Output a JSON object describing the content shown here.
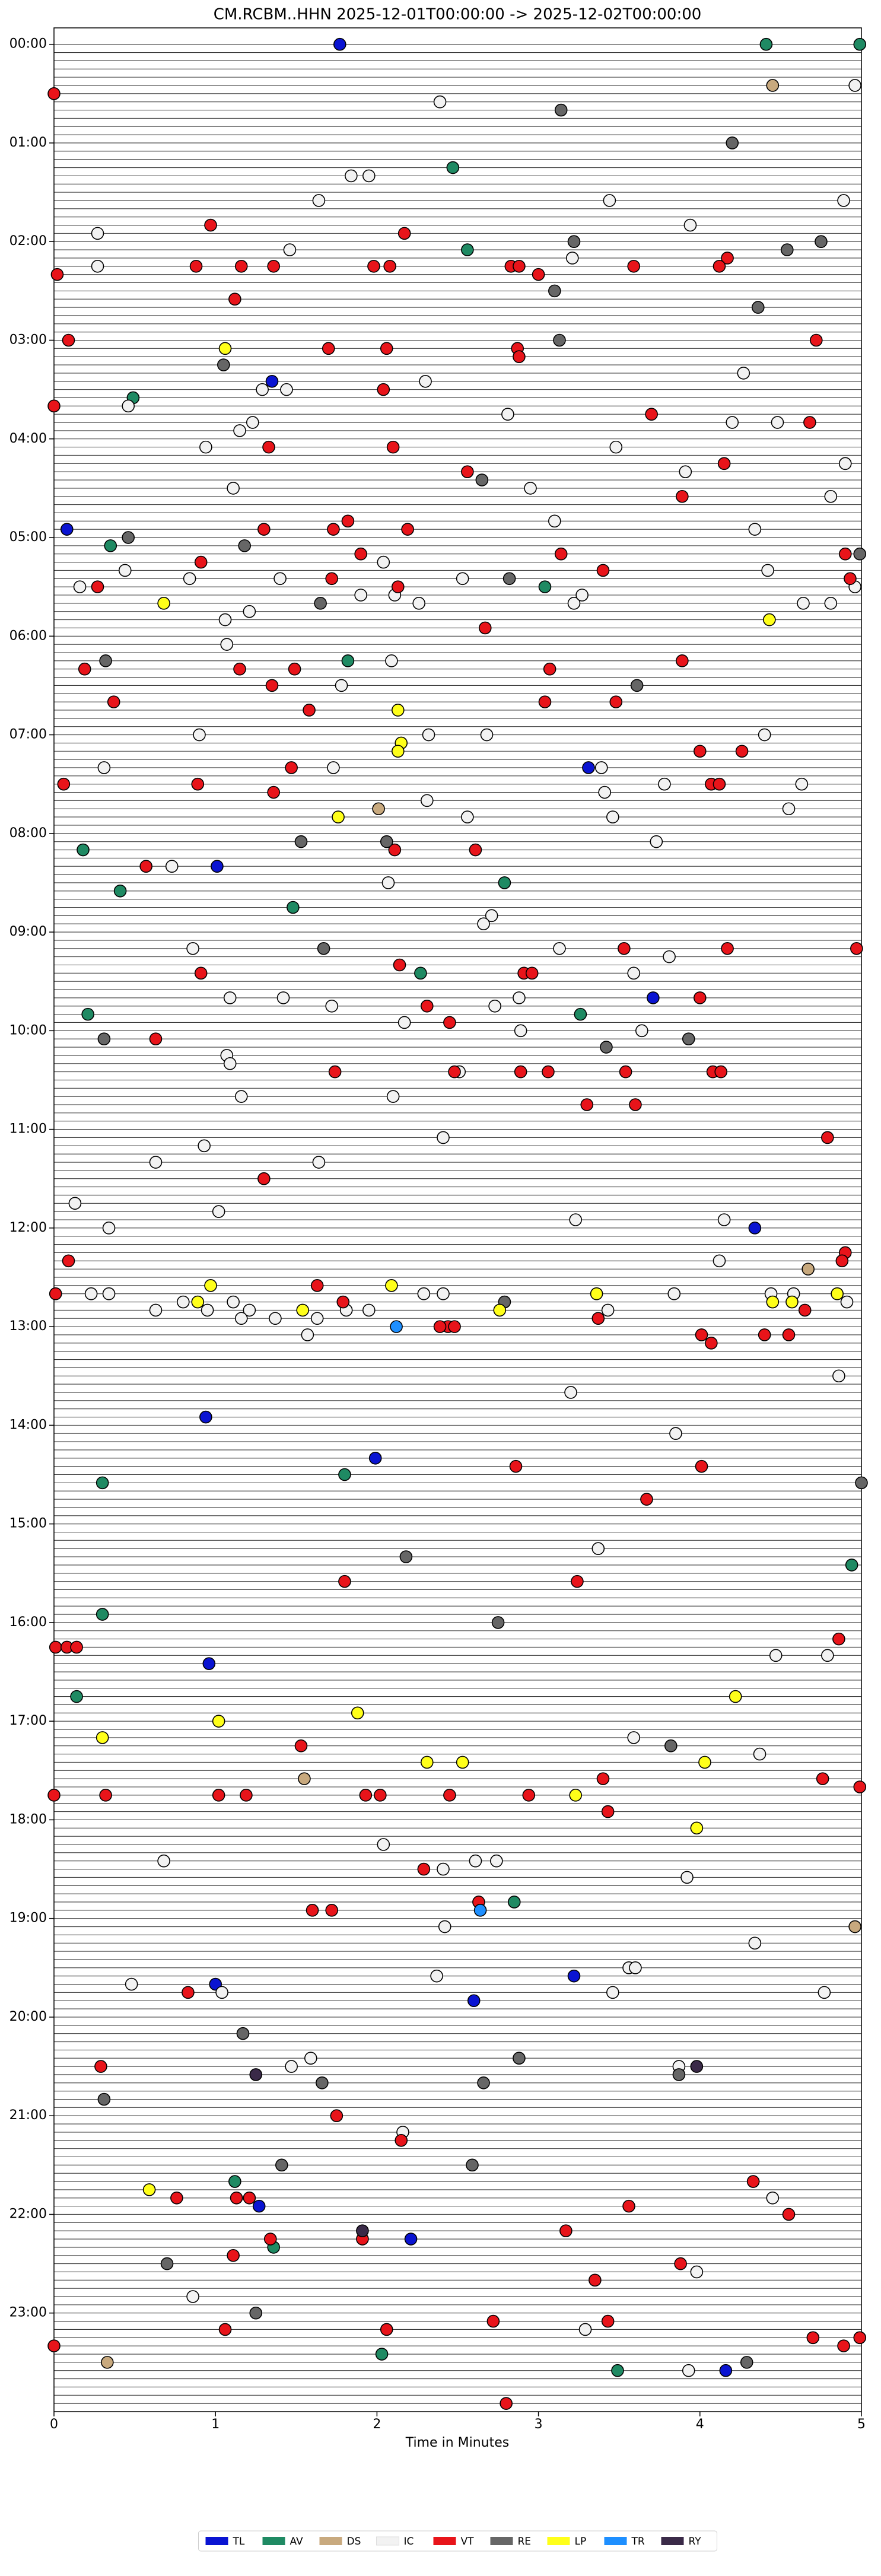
{
  "chart_data": {
    "type": "scatter",
    "title": "CM.RCBM..HHN  2025-12-01T00:00:00 -> 2025-12-02T00:00:00",
    "x_label": "Time in Minutes",
    "xlim": [
      0,
      5
    ],
    "xticks": [
      0,
      1,
      2,
      3,
      4,
      5
    ],
    "ylim": [
      1440,
      -10
    ],
    "yticks": [
      {
        "value": 0,
        "label": "00:00"
      },
      {
        "value": 60,
        "label": "01:00"
      },
      {
        "value": 120,
        "label": "02:00"
      },
      {
        "value": 180,
        "label": "03:00"
      },
      {
        "value": 240,
        "label": "04:00"
      },
      {
        "value": 300,
        "label": "05:00"
      },
      {
        "value": 360,
        "label": "06:00"
      },
      {
        "value": 420,
        "label": "07:00"
      },
      {
        "value": 480,
        "label": "08:00"
      },
      {
        "value": 540,
        "label": "09:00"
      },
      {
        "value": 600,
        "label": "10:00"
      },
      {
        "value": 660,
        "label": "11:00"
      },
      {
        "value": 720,
        "label": "12:00"
      },
      {
        "value": 780,
        "label": "13:00"
      },
      {
        "value": 840,
        "label": "14:00"
      },
      {
        "value": 900,
        "label": "15:00"
      },
      {
        "value": 960,
        "label": "16:00"
      },
      {
        "value": 1020,
        "label": "17:00"
      },
      {
        "value": 1080,
        "label": "18:00"
      },
      {
        "value": 1140,
        "label": "19:00"
      },
      {
        "value": 1200,
        "label": "20:00"
      },
      {
        "value": 1260,
        "label": "21:00"
      },
      {
        "value": 1320,
        "label": "22:00"
      },
      {
        "value": 1380,
        "label": "23:00"
      }
    ],
    "legend": "bottom",
    "series": [
      {
        "name": "TL",
        "color": "#0a14d2",
        "x": [
          1.77,
          0.08,
          1.35,
          1.01,
          3.71,
          3.31,
          4.34,
          0.94,
          1.99,
          0.96,
          3.22,
          1.0,
          2.6,
          1.27,
          2.21,
          4.16
        ],
        "y": [
          0,
          295,
          205,
          500,
          580,
          440,
          720,
          835,
          860,
          985,
          1175,
          1180,
          1190,
          1315,
          1335,
          1415
        ]
      },
      {
        "name": "AV",
        "color": "#1f8a63",
        "x": [
          4.41,
          4.99,
          2.47,
          2.56,
          0.49,
          0.35,
          3.04,
          1.82,
          0.18,
          2.79,
          0.41,
          1.48,
          2.27,
          0.21,
          3.26,
          1.8,
          0.3,
          4.94,
          0.3,
          0.14,
          2.85,
          1.12,
          1.36,
          2.03,
          3.49
        ],
        "y": [
          0,
          0,
          75,
          125,
          215,
          305,
          330,
          375,
          490,
          510,
          515,
          525,
          565,
          590,
          590,
          870,
          875,
          925,
          955,
          1005,
          1130,
          1300,
          1340,
          1405,
          1415
        ]
      },
      {
        "name": "DS",
        "color": "#c8a97e",
        "x": [
          4.45,
          2.01,
          4.67,
          1.55,
          4.96,
          0.33
        ],
        "y": [
          25,
          465,
          745,
          1055,
          1145,
          1410
        ]
      },
      {
        "name": "IC",
        "color": "#f2f2f2",
        "x": [
          2.39,
          4.96,
          1.84,
          1.95,
          1.64,
          3.44,
          4.89,
          0.27,
          3.94,
          1.46,
          3.21,
          0.27,
          4.27,
          1.44,
          1.29,
          2.3,
          0.46,
          2.81,
          1.23,
          1.15,
          4.2,
          4.48,
          0.94,
          3.48,
          3.91,
          4.9,
          1.11,
          2.95,
          4.81,
          3.1,
          4.34,
          2.04,
          0.44,
          4.42,
          4.96,
          0.84,
          1.4,
          2.53,
          0.16,
          1.06,
          1.21,
          2.26,
          3.22,
          3.27,
          4.64,
          4.81,
          1.9,
          2.11,
          1.07,
          2.09,
          1.78,
          0.9,
          2.32,
          2.68,
          4.4,
          0.31,
          1.73,
          3.39,
          3.78,
          4.63,
          3.41,
          2.31,
          2.56,
          3.46,
          4.55,
          3.73,
          0.73,
          2.07,
          2.71,
          2.66,
          0.86,
          3.13,
          3.81,
          3.59,
          1.09,
          1.42,
          2.88,
          1.72,
          2.73,
          2.17,
          2.89,
          3.64,
          1.07,
          1.09,
          2.51,
          1.16,
          2.1,
          2.41,
          0.93,
          0.63,
          1.64,
          0.13,
          1.02,
          0.34,
          3.23,
          4.15,
          4.12,
          0.23,
          0.34,
          2.41,
          2.29,
          4.44,
          4.58,
          3.84,
          4.91,
          0.63,
          1.11,
          0.8,
          0.95,
          1.21,
          1.37,
          1.63,
          1.81,
          1.95,
          3.43,
          1.16,
          1.57,
          4.86,
          3.2,
          3.85,
          3.37,
          4.47,
          4.79,
          3.59,
          4.37,
          2.04,
          0.68,
          2.61,
          2.74,
          2.41,
          3.92,
          2.42,
          4.34,
          2.37,
          0.48,
          1.04,
          3.56,
          3.6,
          3.46,
          4.77,
          1.59,
          1.47,
          3.87,
          2.16,
          4.45,
          3.98,
          0.86,
          3.29,
          3.93
        ],
        "y": [
          35,
          25,
          80,
          80,
          95,
          95,
          95,
          115,
          110,
          125,
          130,
          135,
          200,
          210,
          210,
          205,
          220,
          225,
          230,
          235,
          230,
          230,
          245,
          245,
          260,
          255,
          270,
          270,
          275,
          290,
          295,
          315,
          320,
          320,
          330,
          325,
          325,
          325,
          330,
          350,
          345,
          340,
          340,
          335,
          340,
          340,
          335,
          335,
          365,
          375,
          390,
          420,
          420,
          420,
          420,
          440,
          440,
          440,
          450,
          450,
          455,
          460,
          470,
          470,
          465,
          485,
          500,
          510,
          530,
          535,
          550,
          550,
          555,
          565,
          580,
          580,
          580,
          585,
          585,
          595,
          600,
          600,
          615,
          620,
          625,
          640,
          640,
          665,
          670,
          680,
          680,
          705,
          710,
          720,
          715,
          715,
          740,
          760,
          760,
          760,
          760,
          760,
          760,
          760,
          765,
          770,
          765,
          765,
          770,
          770,
          775,
          775,
          770,
          770,
          770,
          775,
          785,
          810,
          820,
          845,
          915,
          980,
          980,
          1030,
          1040,
          1095,
          1105,
          1105,
          1105,
          1110,
          1115,
          1145,
          1155,
          1175,
          1180,
          1185,
          1170,
          1170,
          1185,
          1185,
          1225,
          1230,
          1230,
          1270,
          1310,
          1355,
          1370,
          1390,
          1415
        ]
      },
      {
        "name": "VT",
        "color": "#e8141a",
        "x": [
          0.0,
          0.97,
          2.17,
          4.17,
          0.02,
          0.88,
          1.16,
          1.36,
          1.98,
          2.08,
          2.83,
          2.88,
          3.0,
          3.59,
          4.12,
          1.12,
          0.09,
          1.7,
          2.06,
          2.87,
          2.88,
          4.72,
          2.04,
          0.0,
          1.33,
          3.7,
          2.1,
          4.68,
          4.15,
          2.56,
          3.89,
          1.82,
          1.3,
          1.73,
          2.19,
          0.91,
          1.9,
          3.14,
          4.9,
          4.93,
          1.72,
          3.4,
          0.27,
          2.13,
          2.67,
          0.19,
          1.15,
          1.49,
          1.35,
          3.07,
          3.89,
          0.37,
          1.58,
          3.04,
          3.48,
          4.0,
          4.26,
          1.47,
          4.07,
          4.12,
          0.06,
          0.89,
          1.36,
          2.11,
          2.61,
          0.57,
          3.53,
          4.17,
          4.97,
          0.91,
          2.14,
          2.91,
          2.96,
          4.0,
          2.31,
          2.45,
          0.63,
          1.74,
          2.48,
          2.89,
          3.06,
          3.54,
          4.08,
          4.13,
          3.3,
          3.6,
          4.79,
          1.3,
          4.9,
          4.88,
          0.09,
          0.01,
          1.63,
          1.79,
          4.65,
          3.37,
          2.44,
          2.39,
          2.48,
          4.01,
          4.07,
          4.4,
          4.55,
          2.86,
          4.01,
          3.67,
          1.8,
          3.24,
          0.01,
          0.08,
          0.14,
          4.86,
          1.53,
          3.4,
          4.76,
          0.0,
          0.32,
          1.02,
          1.19,
          1.93,
          2.02,
          2.45,
          2.94,
          4.99,
          3.43,
          2.29,
          2.63,
          1.6,
          1.72,
          0.83,
          0.29,
          1.75,
          2.15,
          4.33,
          0.76,
          1.13,
          1.21,
          3.56,
          4.55,
          1.91,
          3.17,
          1.34,
          1.11,
          3.88,
          3.35,
          2.72,
          3.43,
          1.06,
          2.06,
          4.7,
          4.99,
          0.0,
          4.89,
          2.8
        ],
        "y": [
          30,
          110,
          115,
          130,
          140,
          135,
          135,
          135,
          135,
          135,
          135,
          135,
          140,
          135,
          135,
          155,
          180,
          185,
          185,
          185,
          190,
          180,
          210,
          220,
          245,
          225,
          245,
          230,
          255,
          260,
          275,
          290,
          295,
          295,
          295,
          315,
          310,
          310,
          310,
          325,
          325,
          320,
          330,
          330,
          355,
          380,
          380,
          380,
          390,
          380,
          375,
          400,
          405,
          400,
          400,
          430,
          430,
          440,
          450,
          450,
          450,
          450,
          455,
          490,
          490,
          500,
          550,
          550,
          550,
          565,
          560,
          565,
          565,
          580,
          585,
          595,
          605,
          625,
          625,
          625,
          625,
          625,
          625,
          625,
          645,
          645,
          665,
          690,
          735,
          740,
          740,
          760,
          755,
          765,
          770,
          775,
          780,
          780,
          780,
          785,
          790,
          785,
          785,
          865,
          865,
          885,
          935,
          935,
          975,
          975,
          975,
          970,
          1035,
          1055,
          1055,
          1065,
          1065,
          1065,
          1065,
          1065,
          1065,
          1065,
          1065,
          1060,
          1075,
          1110,
          1130,
          1135,
          1135,
          1185,
          1230,
          1260,
          1275,
          1300,
          1310,
          1310,
          1310,
          1315,
          1320,
          1335,
          1330,
          1335,
          1345,
          1350,
          1360,
          1385,
          1385,
          1390,
          1390,
          1395,
          1395,
          1400,
          1400,
          1435
        ]
      },
      {
        "name": "RE",
        "color": "#666666",
        "x": [
          3.14,
          4.2,
          3.22,
          4.54,
          4.75,
          3.1,
          4.36,
          3.13,
          1.05,
          2.65,
          0.46,
          1.18,
          4.99,
          2.82,
          1.65,
          0.32,
          3.61,
          1.53,
          2.06,
          1.67,
          0.31,
          3.93,
          3.42,
          2.79,
          5.0,
          2.18,
          2.75,
          3.82,
          1.17,
          2.88,
          3.87,
          1.66,
          2.66,
          0.31,
          1.41,
          2.59,
          0.7,
          1.25,
          4.29
        ],
        "y": [
          40,
          60,
          120,
          125,
          120,
          150,
          160,
          180,
          195,
          265,
          300,
          305,
          310,
          325,
          340,
          375,
          390,
          485,
          485,
          550,
          605,
          605,
          610,
          765,
          875,
          920,
          960,
          1035,
          1210,
          1225,
          1235,
          1240,
          1240,
          1250,
          1290,
          1290,
          1350,
          1380,
          1410
        ]
      },
      {
        "name": "LP",
        "color": "#ffff1a",
        "x": [
          1.06,
          0.68,
          4.43,
          2.13,
          2.15,
          2.13,
          1.76,
          0.97,
          2.09,
          3.36,
          4.45,
          4.85,
          4.57,
          0.89,
          1.54,
          2.76,
          4.22,
          1.02,
          1.88,
          0.3,
          2.31,
          2.53,
          4.03,
          3.23,
          3.98,
          0.59
        ],
        "y": [
          185,
          340,
          350,
          405,
          425,
          430,
          470,
          755,
          755,
          760,
          765,
          760,
          765,
          765,
          770,
          770,
          1005,
          1020,
          1015,
          1030,
          1045,
          1045,
          1045,
          1065,
          1085,
          1305
        ]
      },
      {
        "name": "TR",
        "color": "#1e8fff",
        "x": [
          2.12,
          2.64
        ],
        "y": [
          780,
          1135
        ]
      },
      {
        "name": "RY",
        "color": "#3a2a48",
        "x": [
          3.98,
          1.25,
          1.91
        ],
        "y": [
          1230,
          1235,
          1330
        ]
      }
    ]
  }
}
